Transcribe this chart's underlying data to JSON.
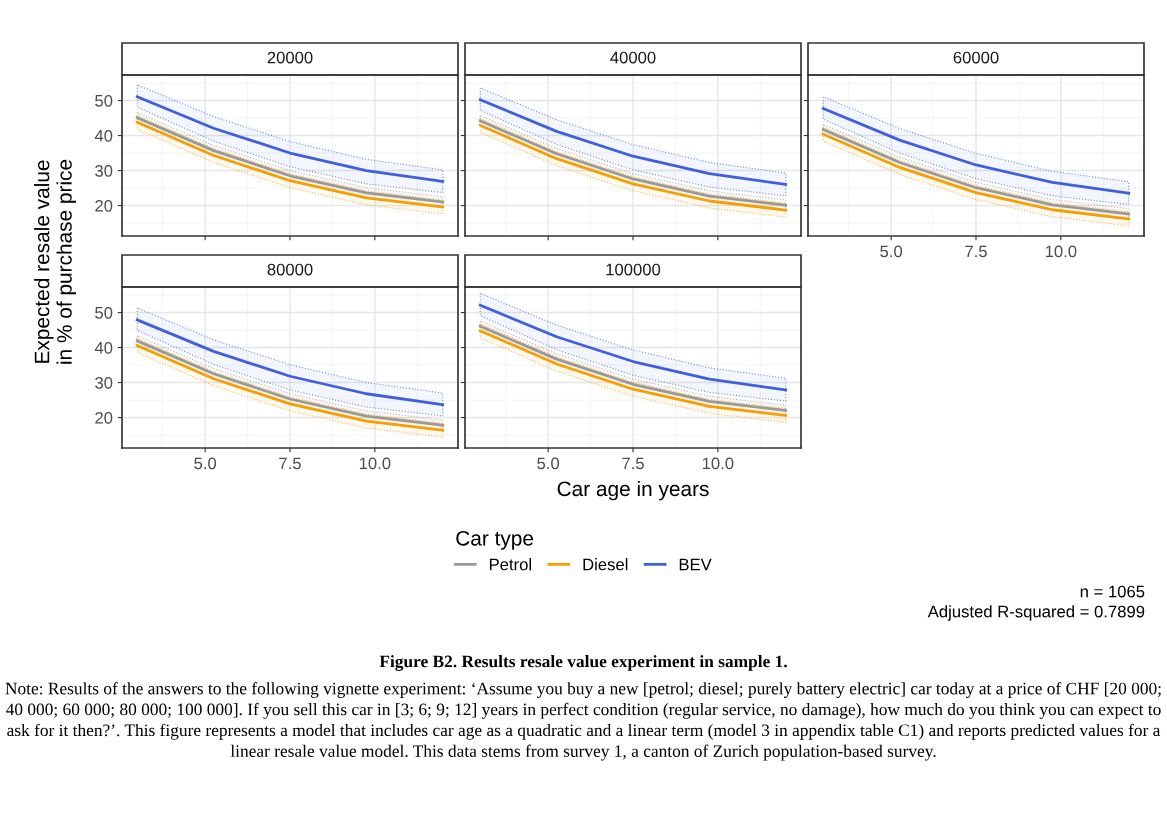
{
  "chart_data": [
    {
      "type": "line",
      "title": "20000",
      "ylabel": "Expected resale value\nin % of purchase price",
      "legend": "bottom",
      "legend_title": "Car type",
      "grid": true,
      "tick_labels": "y",
      "xlim": [
        2.55,
        12.45
      ],
      "ylim": [
        11.3,
        57.3
      ],
      "xticks": [
        {
          "value": 5,
          "label": null
        },
        {
          "value": 7.5,
          "label": null
        },
        {
          "value": 10,
          "label": null
        }
      ],
      "yticks": [
        20,
        30,
        40,
        50
      ],
      "x": [
        3,
        5.25,
        7.5,
        9.75,
        12
      ],
      "series": [
        {
          "name": "Petrol",
          "color": "#999999",
          "values": [
            45.1,
            35.7,
            28.5,
            23.6,
            21.0
          ],
          "upper": [
            46.6,
            37.2,
            30.0,
            25.1,
            22.5
          ],
          "lower": [
            43.6,
            34.2,
            27.0,
            22.1,
            19.5
          ]
        },
        {
          "name": "Diesel",
          "color": "#f5a000",
          "values": [
            43.8,
            34.3,
            27.1,
            22.2,
            19.6
          ],
          "upper": [
            45.8,
            36.3,
            29.1,
            24.2,
            21.6
          ],
          "lower": [
            41.8,
            32.3,
            25.1,
            20.2,
            17.6
          ]
        },
        {
          "name": "BEV",
          "color": "#3f5fde",
          "values": [
            51.1,
            42.1,
            35.0,
            30.0,
            26.9
          ],
          "upper": [
            54.5,
            45.4,
            38.3,
            33.2,
            30.2
          ],
          "lower": [
            48.1,
            38.4,
            31.1,
            26.2,
            23.7
          ]
        }
      ]
    },
    {
      "type": "line",
      "title": "40000",
      "grid": true,
      "tick_labels": false,
      "xlim": [
        2.55,
        12.45
      ],
      "ylim": [
        11.3,
        57.3
      ],
      "xticks": [
        {
          "value": 5,
          "label": null
        },
        {
          "value": 7.5,
          "label": null
        },
        {
          "value": 10,
          "label": null
        }
      ],
      "yticks": [
        {
          "value": 20,
          "label": null
        },
        {
          "value": 30,
          "label": null
        },
        {
          "value": 40,
          "label": null
        },
        {
          "value": 50,
          "label": null
        }
      ],
      "x": [
        3,
        5.25,
        7.5,
        9.75,
        12
      ],
      "series": [
        {
          "color": "#999999",
          "values": [
            44.2,
            34.8,
            27.6,
            22.7,
            20.1
          ],
          "upper": [
            45.7,
            36.3,
            29.1,
            24.2,
            21.6
          ],
          "lower": [
            42.7,
            33.3,
            26.1,
            21.2,
            18.6
          ]
        },
        {
          "color": "#f5a000",
          "values": [
            42.9,
            33.4,
            26.2,
            21.3,
            18.7
          ],
          "upper": [
            44.9,
            35.4,
            28.2,
            23.3,
            20.7
          ],
          "lower": [
            40.9,
            31.4,
            24.2,
            19.3,
            16.7
          ]
        },
        {
          "color": "#3f5fde",
          "values": [
            50.2,
            41.2,
            34.1,
            29.1,
            26.0
          ],
          "upper": [
            53.6,
            44.5,
            37.4,
            32.3,
            29.3
          ],
          "lower": [
            47.2,
            37.5,
            30.2,
            25.3,
            22.8
          ]
        }
      ]
    },
    {
      "type": "line",
      "title": "60000",
      "grid": true,
      "tick_labels": "x",
      "xlim": [
        2.55,
        12.45
      ],
      "ylim": [
        11.3,
        57.3
      ],
      "xticks": [
        {
          "value": 5,
          "label": "5.0"
        },
        {
          "value": 7.5,
          "label": "7.5"
        },
        {
          "value": 10,
          "label": "10.0"
        }
      ],
      "yticks": [
        {
          "value": 20,
          "label": null
        },
        {
          "value": 30,
          "label": null
        },
        {
          "value": 40,
          "label": null
        },
        {
          "value": 50,
          "label": null
        }
      ],
      "x": [
        3,
        5.25,
        7.5,
        9.75,
        12
      ],
      "series": [
        {
          "color": "#999999",
          "values": [
            41.7,
            32.3,
            25.1,
            20.2,
            17.6
          ],
          "upper": [
            43.2,
            33.8,
            26.6,
            21.7,
            19.1
          ],
          "lower": [
            40.2,
            30.8,
            23.6,
            18.7,
            16.1
          ]
        },
        {
          "color": "#f5a000",
          "values": [
            40.4,
            30.9,
            23.7,
            18.8,
            16.2
          ],
          "upper": [
            42.4,
            32.9,
            25.7,
            20.8,
            18.2
          ],
          "lower": [
            38.4,
            28.9,
            21.7,
            16.8,
            14.2
          ]
        },
        {
          "color": "#3f5fde",
          "values": [
            47.7,
            38.7,
            31.6,
            26.6,
            23.5
          ],
          "upper": [
            51.1,
            42.0,
            34.9,
            29.8,
            26.8
          ],
          "lower": [
            44.7,
            35.0,
            27.7,
            22.8,
            20.3
          ]
        }
      ]
    },
    {
      "type": "line",
      "title": "80000",
      "grid": true,
      "xlim": [
        2.55,
        12.45
      ],
      "ylim": [
        11.3,
        57.3
      ],
      "xticks": [
        {
          "value": 5,
          "label": "5.0"
        },
        {
          "value": 7.5,
          "label": "7.5"
        },
        {
          "value": 10,
          "label": "10.0"
        }
      ],
      "yticks": [
        20,
        30,
        40,
        50
      ],
      "x": [
        3,
        5.25,
        7.5,
        9.75,
        12
      ],
      "series": [
        {
          "color": "#999999",
          "values": [
            41.9,
            32.5,
            25.3,
            20.4,
            17.8
          ],
          "upper": [
            43.4,
            34.0,
            26.8,
            21.9,
            19.3
          ],
          "lower": [
            40.4,
            31.0,
            23.8,
            18.9,
            16.3
          ]
        },
        {
          "color": "#f5a000",
          "values": [
            40.6,
            31.1,
            23.9,
            19.0,
            16.4
          ],
          "upper": [
            42.6,
            33.1,
            25.9,
            21.0,
            18.4
          ],
          "lower": [
            38.6,
            29.1,
            21.9,
            17.0,
            14.4
          ]
        },
        {
          "color": "#3f5fde",
          "values": [
            47.9,
            38.9,
            31.8,
            26.8,
            23.7
          ],
          "upper": [
            51.3,
            42.2,
            35.1,
            30.0,
            27.0
          ],
          "lower": [
            44.9,
            35.2,
            27.9,
            23.0,
            20.5
          ]
        }
      ]
    },
    {
      "type": "line",
      "title": "100000",
      "xlabel": "Car age in years",
      "grid": true,
      "tick_labels": "x",
      "xlim": [
        2.55,
        12.45
      ],
      "ylim": [
        11.3,
        57.3
      ],
      "xticks": [
        {
          "value": 5,
          "label": "5.0"
        },
        {
          "value": 7.5,
          "label": "7.5"
        },
        {
          "value": 10,
          "label": "10.0"
        }
      ],
      "yticks": [
        {
          "value": 20,
          "label": null
        },
        {
          "value": 30,
          "label": null
        },
        {
          "value": 40,
          "label": null
        },
        {
          "value": 50,
          "label": null
        }
      ],
      "x": [
        3,
        5.25,
        7.5,
        9.75,
        12
      ],
      "series": [
        {
          "color": "#999999",
          "values": [
            46.1,
            36.7,
            29.5,
            24.6,
            22.0
          ],
          "upper": [
            47.6,
            38.2,
            31.0,
            26.1,
            23.5
          ],
          "lower": [
            44.6,
            35.2,
            28.0,
            23.1,
            20.5
          ]
        },
        {
          "color": "#f5a000",
          "values": [
            44.8,
            35.3,
            28.1,
            23.2,
            20.6
          ],
          "upper": [
            46.8,
            37.3,
            30.1,
            25.2,
            22.6
          ],
          "lower": [
            42.8,
            33.3,
            26.1,
            21.2,
            18.6
          ]
        },
        {
          "color": "#3f5fde",
          "values": [
            52.1,
            43.1,
            36.0,
            31.0,
            27.9
          ],
          "upper": [
            55.5,
            46.4,
            39.3,
            34.2,
            31.2
          ],
          "lower": [
            49.1,
            39.4,
            32.1,
            27.2,
            24.7
          ]
        }
      ],
      "annotations": [
        "n = 1065",
        "Adjusted R-squared = 0.7899",
        "Figure B2. Results resale value experiment in sample 1.",
        "Note: Results of the answers to the following vignette experiment: ‘Assume you buy a new [petrol; diesel; purely battery electric] car today at a price of CHF [20 000; 40 000; 60 000; 80 000; 100 000]. If you sell this car in [3; 6; 9; 12] years in perfect condition (regular service, no damage), how much do you think you can expect to ask for it then?’. This figure represents a model that includes car age as a quadratic and a linear term (model 3 in appendix table C1) and reports predicted values for a linear resale value model. This data stems from survey 1, a canton of Zurich population-based survey."
      ]
    }
  ]
}
